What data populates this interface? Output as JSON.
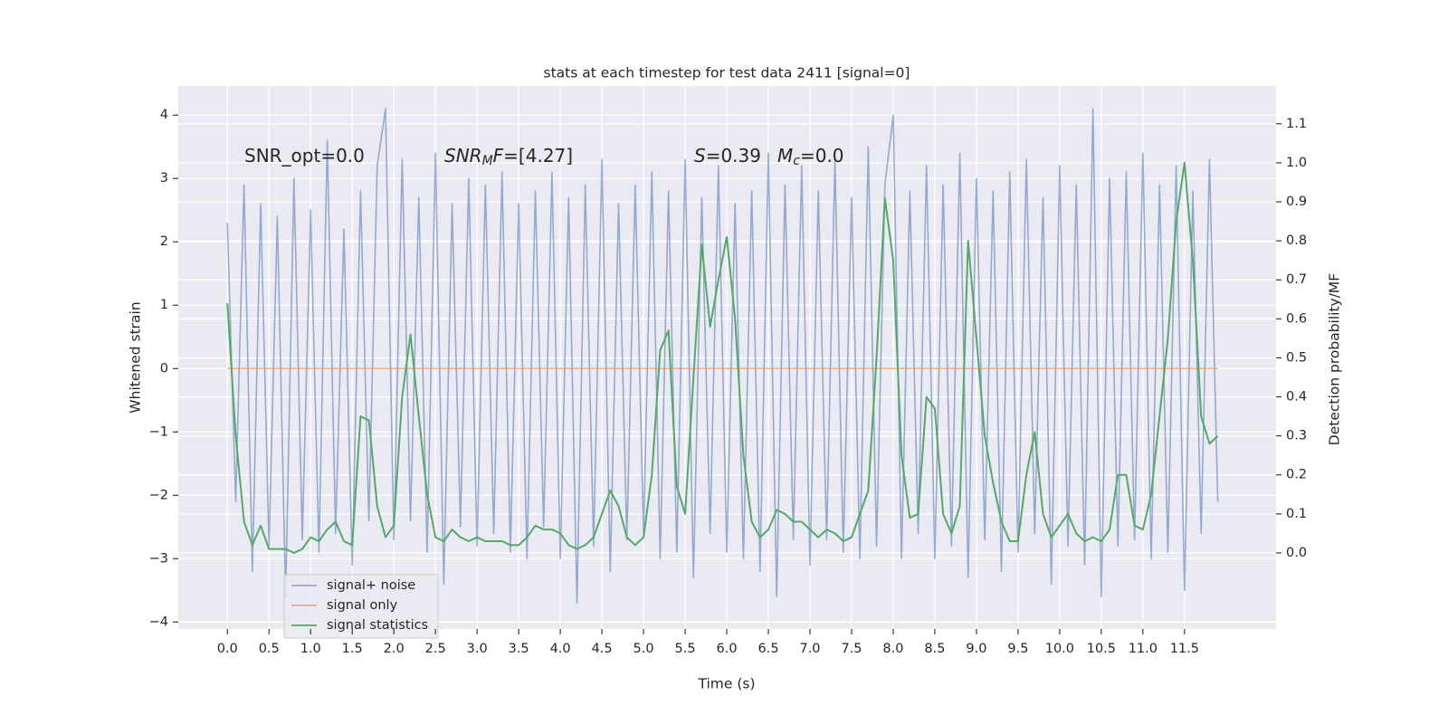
{
  "chart_data": {
    "type": "line",
    "title": "stats at each timestep for test data 2411 [signal=0]",
    "xlabel": "Time (s)",
    "ylabel": "Whitened strain",
    "y2label": "Detection probability/MF",
    "annotations": [
      [
        {
          "text": "SNR_opt=0.0"
        }
      ],
      [
        {
          "text": "SNR",
          "style": "italic"
        },
        {
          "text": "M",
          "style": "sub"
        },
        {
          "text": "F",
          "style": "italic"
        },
        {
          "text": "=[4.27]"
        }
      ],
      [
        {
          "text": "S",
          "style": "italic"
        },
        {
          "text": "=0.39"
        }
      ],
      [
        {
          "text": "M",
          "style": "italic"
        },
        {
          "text": "c",
          "style": "sub"
        },
        {
          "text": "=0.0"
        }
      ]
    ],
    "x": [
      0.0,
      0.1,
      0.2,
      0.3,
      0.4,
      0.5,
      0.6,
      0.7,
      0.8,
      0.9,
      1.0,
      1.1,
      1.2,
      1.3,
      1.4,
      1.5,
      1.6,
      1.7,
      1.8,
      1.9,
      2.0,
      2.1,
      2.2,
      2.3,
      2.4,
      2.5,
      2.6,
      2.7,
      2.8,
      2.9,
      3.0,
      3.1,
      3.2,
      3.3,
      3.4,
      3.5,
      3.6,
      3.7,
      3.8,
      3.9,
      4.0,
      4.1,
      4.2,
      4.3,
      4.4,
      4.5,
      4.6,
      4.7,
      4.8,
      4.9,
      5.0,
      5.1,
      5.2,
      5.3,
      5.4,
      5.5,
      5.6,
      5.7,
      5.8,
      5.9,
      6.0,
      6.1,
      6.2,
      6.3,
      6.4,
      6.5,
      6.6,
      6.7,
      6.8,
      6.9,
      7.0,
      7.1,
      7.2,
      7.3,
      7.4,
      7.5,
      7.6,
      7.7,
      7.8,
      7.9,
      8.0,
      8.1,
      8.2,
      8.3,
      8.4,
      8.5,
      8.6,
      8.7,
      8.8,
      8.9,
      9.0,
      9.1,
      9.2,
      9.3,
      9.4,
      9.5,
      9.6,
      9.7,
      9.8,
      9.9,
      10.0,
      10.1,
      10.2,
      10.3,
      10.4,
      10.5,
      10.6,
      10.7,
      10.8,
      10.9,
      11.0,
      11.1,
      11.2,
      11.3,
      11.4,
      11.5,
      11.6,
      11.7,
      11.8,
      11.9
    ],
    "series": [
      {
        "name": "signal+ noise",
        "color": "#4c72b0",
        "alpha": 0.55,
        "values": [
          2.3,
          -2.1,
          2.9,
          -3.2,
          2.6,
          -2.8,
          2.4,
          -3.6,
          3.0,
          -2.7,
          2.5,
          -2.9,
          3.6,
          -2.6,
          2.2,
          -3.1,
          2.8,
          -2.4,
          3.2,
          4.1,
          -2.7,
          3.3,
          -2.4,
          2.7,
          -2.9,
          3.4,
          -3.4,
          2.6,
          -2.5,
          3.0,
          -2.8,
          2.9,
          -2.6,
          3.1,
          -2.9,
          2.6,
          -3.0,
          2.8,
          -2.5,
          3.1,
          -3.0,
          2.7,
          -3.7,
          2.9,
          -2.8,
          3.3,
          -3.2,
          2.6,
          -2.7,
          2.9,
          -2.6,
          3.1,
          -3.0,
          2.8,
          -2.9,
          3.3,
          -3.3,
          2.7,
          -2.6,
          3.2,
          -2.9,
          2.6,
          -3.0,
          2.8,
          -3.2,
          3.4,
          -3.6,
          2.9,
          -2.7,
          3.2,
          -3.1,
          2.8,
          -2.7,
          3.3,
          -2.9,
          2.7,
          -3.0,
          3.5,
          -2.8,
          2.9,
          4.0,
          -3.0,
          2.8,
          -2.6,
          3.2,
          -3.0,
          2.9,
          -2.8,
          3.4,
          -3.3,
          3.0,
          -2.7,
          2.8,
          -3.2,
          3.1,
          -2.9,
          3.3,
          -2.6,
          2.7,
          -3.4,
          3.2,
          -2.8,
          2.9,
          -3.1,
          4.1,
          -3.6,
          3.0,
          -2.8,
          3.1,
          -2.7,
          3.4,
          -3.0,
          2.9,
          -2.9,
          3.2,
          -3.5,
          2.8,
          -2.6,
          3.3,
          -2.1
        ]
      },
      {
        "name": "signal only",
        "color": "#dd8452",
        "alpha": 0.6,
        "values": [
          0,
          0,
          0,
          0,
          0,
          0,
          0,
          0,
          0,
          0,
          0,
          0,
          0,
          0,
          0,
          0,
          0,
          0,
          0,
          0,
          0,
          0,
          0,
          0,
          0,
          0,
          0,
          0,
          0,
          0,
          0,
          0,
          0,
          0,
          0,
          0,
          0,
          0,
          0,
          0,
          0,
          0,
          0,
          0,
          0,
          0,
          0,
          0,
          0,
          0,
          0,
          0,
          0,
          0,
          0,
          0,
          0,
          0,
          0,
          0,
          0,
          0,
          0,
          0,
          0,
          0,
          0,
          0,
          0,
          0,
          0,
          0,
          0,
          0,
          0,
          0,
          0,
          0,
          0,
          0,
          0,
          0,
          0,
          0,
          0,
          0,
          0,
          0,
          0,
          0,
          0,
          0,
          0,
          0,
          0,
          0,
          0,
          0,
          0,
          0,
          0,
          0,
          0,
          0,
          0,
          0,
          0,
          0,
          0,
          0,
          0,
          0,
          0,
          0,
          0,
          0,
          0,
          0,
          0,
          0
        ]
      },
      {
        "name": "signal statistics",
        "color": "#55a868",
        "alpha": 1,
        "axis": "y2",
        "values": [
          0.64,
          0.3,
          0.08,
          0.02,
          0.07,
          0.01,
          0.01,
          0.01,
          0.0,
          0.01,
          0.04,
          0.03,
          0.06,
          0.08,
          0.03,
          0.02,
          0.35,
          0.34,
          0.12,
          0.04,
          0.07,
          0.4,
          0.56,
          0.35,
          0.15,
          0.04,
          0.03,
          0.06,
          0.04,
          0.03,
          0.04,
          0.03,
          0.03,
          0.03,
          0.02,
          0.02,
          0.04,
          0.07,
          0.06,
          0.06,
          0.05,
          0.02,
          0.01,
          0.02,
          0.04,
          0.1,
          0.16,
          0.12,
          0.04,
          0.02,
          0.04,
          0.2,
          0.52,
          0.57,
          0.17,
          0.1,
          0.45,
          0.79,
          0.58,
          0.7,
          0.81,
          0.6,
          0.25,
          0.08,
          0.04,
          0.06,
          0.11,
          0.1,
          0.08,
          0.08,
          0.06,
          0.04,
          0.06,
          0.05,
          0.03,
          0.04,
          0.1,
          0.16,
          0.5,
          0.91,
          0.75,
          0.25,
          0.09,
          0.1,
          0.4,
          0.37,
          0.1,
          0.05,
          0.12,
          0.8,
          0.55,
          0.3,
          0.18,
          0.08,
          0.03,
          0.03,
          0.2,
          0.31,
          0.1,
          0.04,
          0.07,
          0.1,
          0.05,
          0.03,
          0.04,
          0.03,
          0.06,
          0.2,
          0.2,
          0.07,
          0.06,
          0.15,
          0.35,
          0.55,
          0.85,
          1.0,
          0.75,
          0.35,
          0.28,
          0.3
        ]
      }
    ],
    "xlim": [
      -0.59,
      12.6
    ],
    "ylim": [
      -4.11,
      4.46
    ],
    "y2lim": [
      -0.195,
      1.197
    ],
    "xticks": [
      {
        "value": 0,
        "label": "0.0"
      },
      0.5,
      {
        "value": 1,
        "label": "1.0"
      },
      1.5,
      {
        "value": 2,
        "label": "2.0"
      },
      2.5,
      {
        "value": 3,
        "label": "3.0"
      },
      3.5,
      {
        "value": 4,
        "label": "4.0"
      },
      4.5,
      {
        "value": 5,
        "label": "5.0"
      },
      5.5,
      {
        "value": 6,
        "label": "6.0"
      },
      6.5,
      {
        "value": 7,
        "label": "7.0"
      },
      7.5,
      {
        "value": 8,
        "label": "8.0"
      },
      8.5,
      {
        "value": 9,
        "label": "9.0"
      },
      9.5,
      {
        "value": 10,
        "label": "10.0"
      },
      10.5,
      {
        "value": 11,
        "label": "11.0"
      },
      11.5
    ],
    "yticks": [
      {
        "value": -4,
        "label": "−4"
      },
      {
        "value": -3,
        "label": "−3"
      },
      {
        "value": -2,
        "label": "−2"
      },
      {
        "value": -1,
        "label": "−1"
      },
      0,
      1,
      2,
      3,
      4
    ],
    "y2ticks": [
      {
        "value": 0,
        "label": "0.0"
      },
      0.1,
      0.2,
      0.3,
      0.4,
      0.5,
      0.6,
      0.7,
      0.8,
      0.9,
      {
        "value": 1,
        "label": "1.0"
      },
      1.1
    ],
    "grid": true,
    "legend": "lower left"
  }
}
